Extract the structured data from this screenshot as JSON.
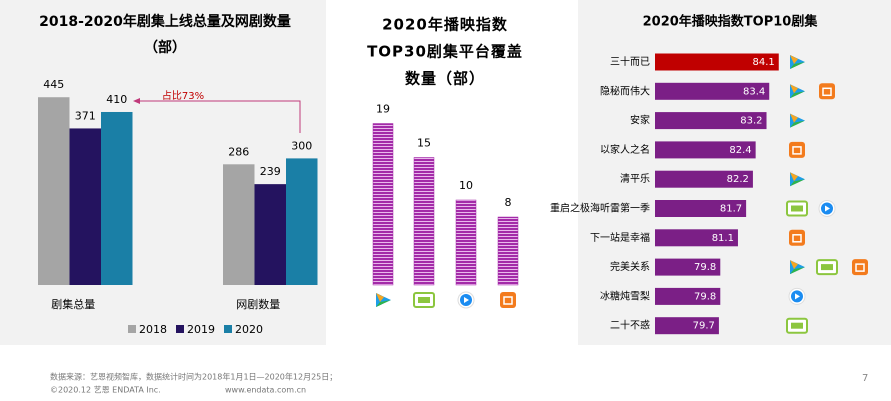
{
  "chart_data": [
    {
      "type": "bar",
      "title": [
        "2018-2020年剧集上线总量及网剧数量",
        "（部）"
      ],
      "categories": [
        "剧集总量",
        "网剧数量"
      ],
      "series": [
        {
          "name": "2018",
          "color": "#a5a5a5",
          "values": [
            445,
            286
          ]
        },
        {
          "name": "2019",
          "color": "#24135f",
          "values": [
            371,
            239
          ]
        },
        {
          "name": "2020",
          "color": "#1a7fa6",
          "values": [
            410,
            300
          ]
        }
      ],
      "ylim": [
        0,
        500
      ],
      "annotation": "占比73%",
      "legend": "bottom"
    },
    {
      "type": "bar",
      "title": [
        "2020年播映指数",
        "TOP30剧集平台覆盖",
        "数量（部）"
      ],
      "categories": [
        null,
        null,
        null,
        null
      ],
      "values": [
        19,
        15,
        10,
        8
      ],
      "color": "#a32ba8",
      "ylim": [
        0,
        22
      ]
    },
    {
      "type": "hbar",
      "title": "2020年播映指数TOP10剧集",
      "categories": [
        "三十而已",
        "隐秘而伟大",
        "安家",
        "以家人之名",
        "清平乐",
        "重启之极海听雷第一季",
        "下一站是幸福",
        "完美关系",
        "冰糖炖雪梨",
        "二十不惑"
      ],
      "values": [
        84.1,
        83.4,
        83.2,
        82.4,
        82.2,
        81.7,
        81.1,
        79.8,
        79.8,
        79.7
      ],
      "colors": [
        "#c00000",
        "#7b1f86",
        "#7b1f86",
        "#7b1f86",
        "#7b1f86",
        "#7b1f86",
        "#7b1f86",
        "#7b1f86",
        "#7b1f86",
        "#7b1f86"
      ],
      "xlim": [
        75,
        85
      ]
    }
  ],
  "footer": {
    "source": "数据来源：艺恩视频智库，数据统计时间为2018年1月1日—2020年12月25日；",
    "copyright": "©2020.12 艺恩 ENDATA Inc.",
    "website": "www.endata.com.cn"
  },
  "page_number": "7"
}
